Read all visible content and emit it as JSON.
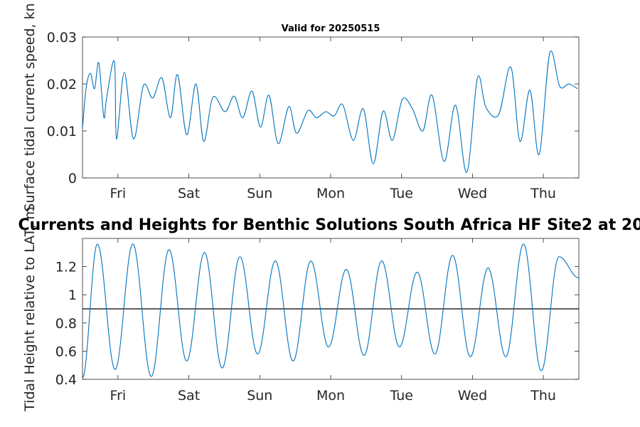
{
  "chart_data": [
    {
      "type": "line",
      "title": "Valid for 20250515",
      "ylabel": "Surface tidal current speed, kn",
      "xlim": [
        0,
        7
      ],
      "ylim": [
        0,
        0.03
      ],
      "yticks": [
        "0",
        "0.01",
        "0.02",
        "0.03"
      ],
      "xticks": [
        {
          "x": 0.5,
          "label": "Fri"
        },
        {
          "x": 1.5,
          "label": "Sat"
        },
        {
          "x": 2.5,
          "label": "Sun"
        },
        {
          "x": 3.5,
          "label": "Mon"
        },
        {
          "x": 4.5,
          "label": "Tue"
        },
        {
          "x": 5.5,
          "label": "Wed"
        },
        {
          "x": 6.5,
          "label": "Thu"
        }
      ],
      "grid": false,
      "series": [
        {
          "color": "#0072bd",
          "x": [
            0.0,
            0.05,
            0.11,
            0.17,
            0.23,
            0.3,
            0.34,
            0.45,
            0.48,
            0.59,
            0.72,
            0.86,
            0.99,
            1.12,
            1.24,
            1.34,
            1.47,
            1.6,
            1.71,
            1.84,
            2.01,
            2.14,
            2.26,
            2.39,
            2.51,
            2.63,
            2.76,
            2.91,
            3.02,
            3.18,
            3.3,
            3.43,
            3.55,
            3.67,
            3.82,
            3.96,
            4.1,
            4.24,
            4.37,
            4.51,
            4.65,
            4.8,
            4.93,
            5.1,
            5.26,
            5.42,
            5.57,
            5.69,
            5.87,
            6.04,
            6.17,
            6.31,
            6.44,
            6.59,
            6.73,
            6.86,
            6.98
          ],
          "y": [
            0.0105,
            0.019,
            0.0223,
            0.019,
            0.0245,
            0.013,
            0.017,
            0.0248,
            0.0083,
            0.0225,
            0.0083,
            0.0197,
            0.017,
            0.0213,
            0.0128,
            0.022,
            0.0092,
            0.02,
            0.0078,
            0.0172,
            0.0141,
            0.0174,
            0.0128,
            0.0185,
            0.0108,
            0.0176,
            0.0073,
            0.0152,
            0.0095,
            0.0143,
            0.0128,
            0.0141,
            0.0132,
            0.0156,
            0.008,
            0.0147,
            0.003,
            0.0142,
            0.008,
            0.0167,
            0.0148,
            0.01,
            0.0176,
            0.0035,
            0.0155,
            0.0012,
            0.0213,
            0.015,
            0.0135,
            0.0236,
            0.0078,
            0.0187,
            0.005,
            0.0266,
            0.0195,
            0.02,
            0.019
          ]
        }
      ]
    },
    {
      "type": "line",
      "title": "Currents and Heights for Benthic Solutions South Africa HF Site2 at 20",
      "ylabel": "Tidal Height relative to LAT, m",
      "xlim": [
        0,
        7
      ],
      "ylim": [
        0.4,
        1.4
      ],
      "yticks": [
        "0.4",
        "0.6",
        "0.8",
        "1",
        "1.2"
      ],
      "xticks": [
        {
          "x": 0.5,
          "label": "Fri"
        },
        {
          "x": 1.5,
          "label": "Sat"
        },
        {
          "x": 2.5,
          "label": "Sun"
        },
        {
          "x": 3.5,
          "label": "Mon"
        },
        {
          "x": 4.5,
          "label": "Tue"
        },
        {
          "x": 5.5,
          "label": "Wed"
        },
        {
          "x": 6.5,
          "label": "Thu"
        }
      ],
      "reference_line": 0.9,
      "grid": false,
      "series": [
        {
          "color": "#0072bd",
          "extrema": [
            [
              0.0,
              0.41
            ],
            [
              0.21,
              1.36
            ],
            [
              0.46,
              0.47
            ],
            [
              0.71,
              1.36
            ],
            [
              0.97,
              0.42
            ],
            [
              1.22,
              1.32
            ],
            [
              1.47,
              0.53
            ],
            [
              1.72,
              1.3
            ],
            [
              1.97,
              0.48
            ],
            [
              2.22,
              1.27
            ],
            [
              2.47,
              0.58
            ],
            [
              2.72,
              1.24
            ],
            [
              2.97,
              0.53
            ],
            [
              3.22,
              1.24
            ],
            [
              3.47,
              0.63
            ],
            [
              3.72,
              1.18
            ],
            [
              3.97,
              0.57
            ],
            [
              4.22,
              1.24
            ],
            [
              4.47,
              0.63
            ],
            [
              4.72,
              1.16
            ],
            [
              4.97,
              0.58
            ],
            [
              5.22,
              1.28
            ],
            [
              5.47,
              0.56
            ],
            [
              5.72,
              1.19
            ],
            [
              5.97,
              0.56
            ],
            [
              6.22,
              1.36
            ],
            [
              6.47,
              0.46
            ],
            [
              6.72,
              1.27
            ],
            [
              7.0,
              1.12
            ]
          ]
        }
      ]
    }
  ]
}
